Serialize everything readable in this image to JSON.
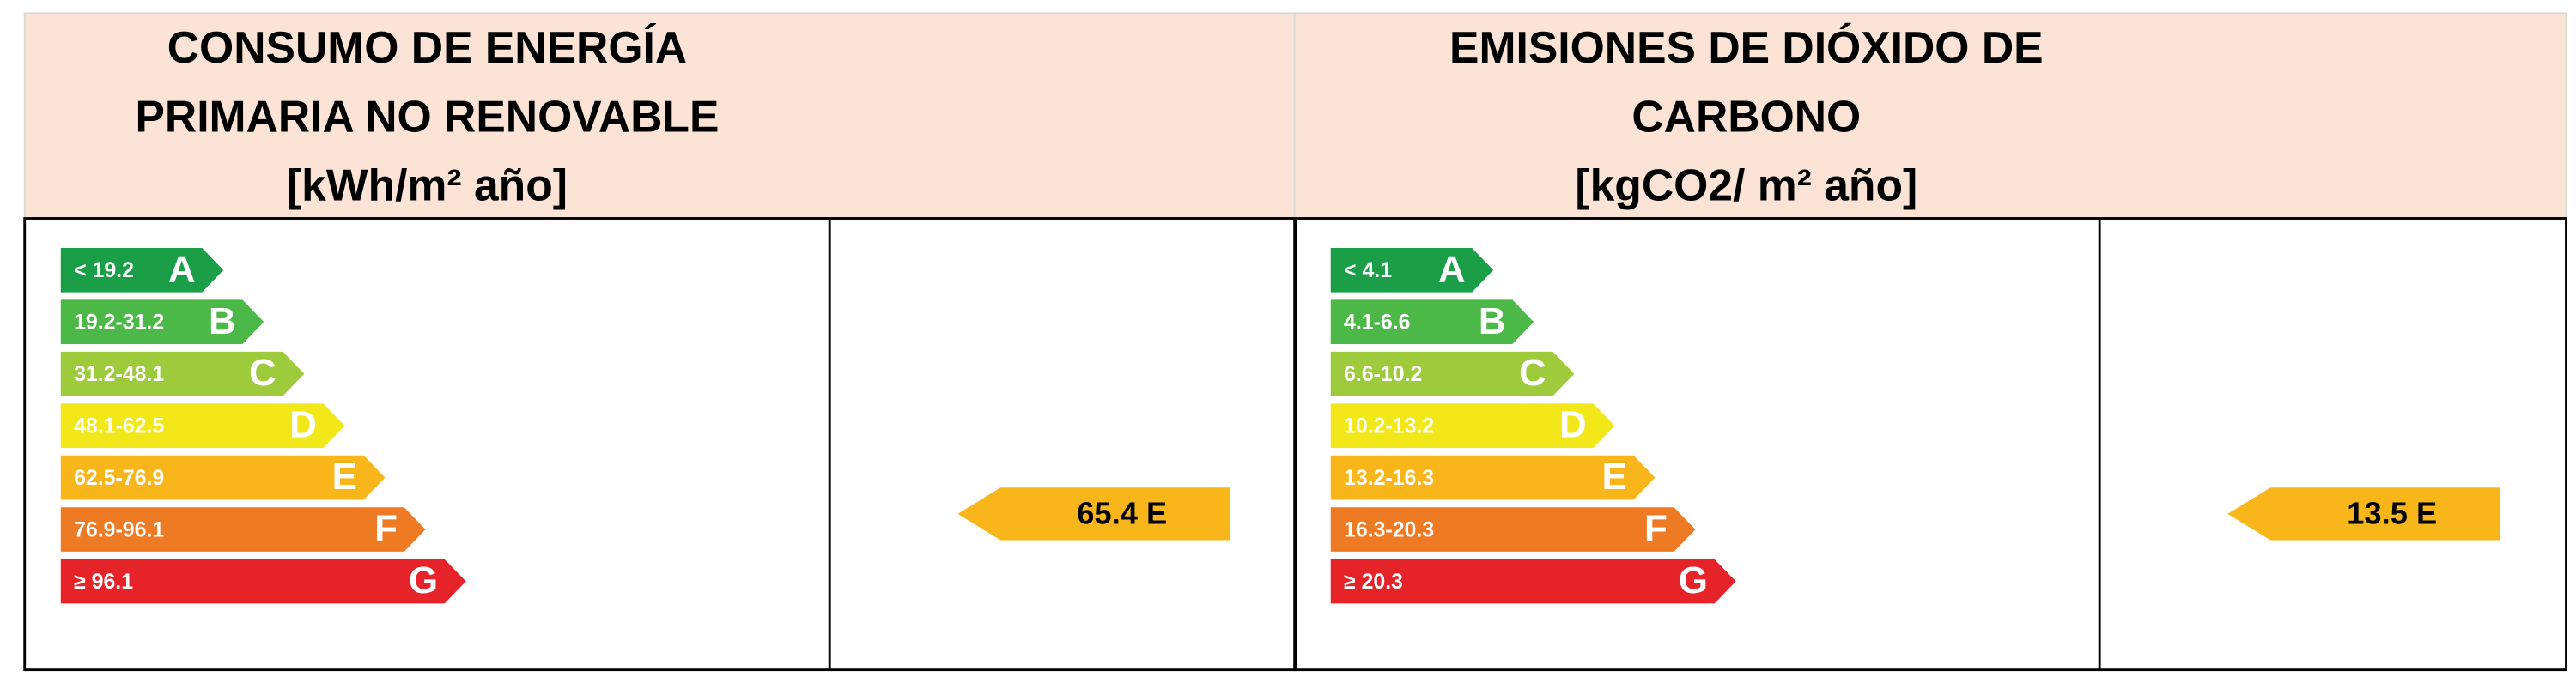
{
  "panels": [
    {
      "title": [
        "CONSUMO DE ENERGÍA",
        "PRIMARIA NO RENOVABLE",
        "[kWh/m² año]"
      ],
      "bands": [
        {
          "range": "< 19.2",
          "letter": "A",
          "color": "#1a9f48"
        },
        {
          "range": "19.2-31.2",
          "letter": "B",
          "color": "#4cb848"
        },
        {
          "range": "31.2-48.1",
          "letter": "C",
          "color": "#9dcb3c"
        },
        {
          "range": "48.1-62.5",
          "letter": "D",
          "color": "#f2e718"
        },
        {
          "range": "62.5-76.9",
          "letter": "E",
          "color": "#f9b61a"
        },
        {
          "range": "76.9-96.1",
          "letter": "F",
          "color": "#ee7b23"
        },
        {
          "range": "≥ 96.1",
          "letter": "G",
          "color": "#e52329"
        }
      ],
      "indicator": {
        "text": "65.4 E",
        "color": "#f9b61a"
      }
    },
    {
      "title": [
        "EMISIONES DE DIÓXIDO DE",
        "CARBONO",
        "[kgCO2/ m² año]"
      ],
      "bands": [
        {
          "range": "< 4.1",
          "letter": "A",
          "color": "#1a9f48"
        },
        {
          "range": "4.1-6.6",
          "letter": "B",
          "color": "#4cb848"
        },
        {
          "range": "6.6-10.2",
          "letter": "C",
          "color": "#9dcb3c"
        },
        {
          "range": "10.2-13.2",
          "letter": "D",
          "color": "#f2e718"
        },
        {
          "range": "13.2-16.3",
          "letter": "E",
          "color": "#f9b61a"
        },
        {
          "range": "16.3-20.3",
          "letter": "F",
          "color": "#ee7b23"
        },
        {
          "range": "≥ 20.3",
          "letter": "G",
          "color": "#e52329"
        }
      ],
      "indicator": {
        "text": "13.5 E",
        "color": "#f9b61a"
      }
    }
  ]
}
